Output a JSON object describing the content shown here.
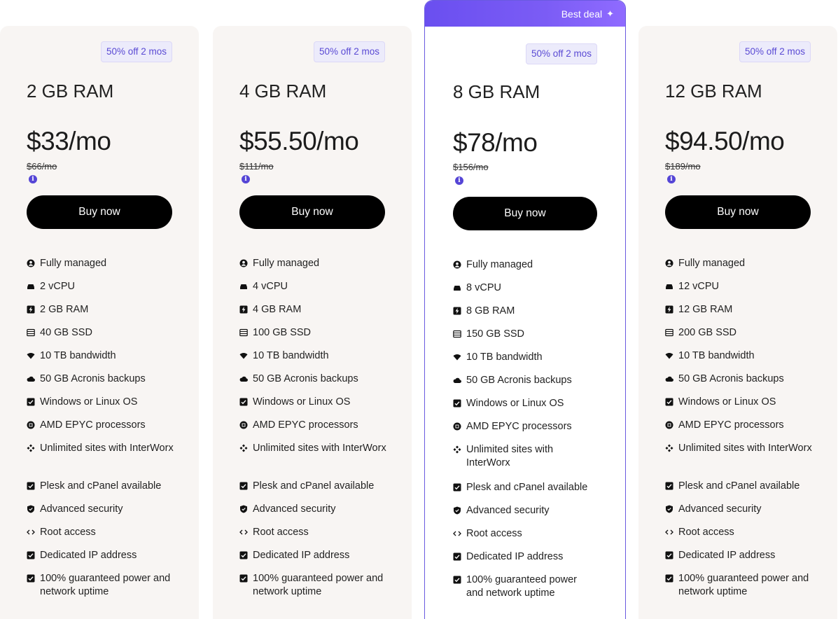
{
  "plans": [
    {
      "badge": "50% off 2 mos",
      "ram": "2 GB RAM",
      "price": "$33/mo",
      "old_price": "$66/mo",
      "buy_label": "Buy now",
      "features": [
        "Fully managed",
        "2 vCPU",
        "2 GB RAM",
        "40 GB SSD",
        "10 TB bandwidth",
        "50 GB Acronis backups",
        "Windows or Linux OS",
        "AMD EPYC processors",
        "Unlimited sites with InterWorx",
        "Plesk and cPanel available",
        "Advanced security",
        "Root access",
        "Dedicated IP address",
        "100% guaranteed power and network uptime"
      ]
    },
    {
      "badge": "50% off 2 mos",
      "ram": "4 GB RAM",
      "price": "$55.50/mo",
      "old_price": "$111/mo",
      "buy_label": "Buy now",
      "features": [
        "Fully managed",
        "4 vCPU",
        "4 GB RAM",
        "100 GB SSD",
        "10 TB bandwidth",
        "50 GB Acronis backups",
        "Windows or Linux OS",
        "AMD EPYC processors",
        "Unlimited sites with InterWorx",
        "Plesk and cPanel available",
        "Advanced security",
        "Root access",
        "Dedicated IP address",
        "100% guaranteed power and network uptime"
      ]
    },
    {
      "banner": "Best deal",
      "badge": "50% off 2 mos",
      "ram": "8 GB RAM",
      "price": "$78/mo",
      "old_price": "$156/mo",
      "buy_label": "Buy now",
      "features": [
        "Fully managed",
        "8 vCPU",
        "8 GB RAM",
        "150 GB SSD",
        "10 TB bandwidth",
        "50 GB Acronis backups",
        "Windows or Linux OS",
        "AMD EPYC processors",
        "Unlimited sites with InterWorx",
        "Plesk and cPanel available",
        "Advanced security",
        "Root access",
        "Dedicated IP address",
        "100% guaranteed power and network uptime"
      ]
    },
    {
      "badge": "50% off 2 mos",
      "ram": "12 GB RAM",
      "price": "$94.50/mo",
      "old_price": "$189/mo",
      "buy_label": "Buy now",
      "features": [
        "Fully managed",
        "12 vCPU",
        "12 GB RAM",
        "200 GB SSD",
        "10 TB bandwidth",
        "50 GB Acronis backups",
        "Windows or Linux OS",
        "AMD EPYC processors",
        "Unlimited sites with InterWorx",
        "Plesk and cPanel available",
        "Advanced security",
        "Root access",
        "Dedicated IP address",
        "100% guaranteed power and network uptime"
      ]
    }
  ],
  "feature_icons": [
    "user-circle-icon",
    "server-icon",
    "bolt-icon",
    "storage-icon",
    "wifi-icon",
    "cloud-icon",
    "checkbox-icon",
    "cpu-icon",
    "apps-icon",
    "checkbox-icon",
    "shield-icon",
    "code-icon",
    "checkbox-icon",
    "checkbox-icon"
  ],
  "colors": {
    "accent": "#5a4ad4",
    "banner": "#6a4ff0",
    "card_bg": "#f8f5f3",
    "button": "#000000"
  }
}
